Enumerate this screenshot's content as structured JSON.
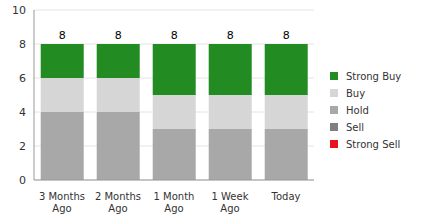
{
  "chart_data": {
    "type": "bar",
    "stacked": true,
    "categories": [
      "3 Months Ago",
      "2 Months Ago",
      "1 Month Ago",
      "1 Week Ago",
      "Today"
    ],
    "series": [
      {
        "name": "Strong Buy",
        "color": "#228b22",
        "values": [
          2,
          2,
          3,
          3,
          3
        ]
      },
      {
        "name": "Buy",
        "color": "#d6d6d6",
        "values": [
          2,
          2,
          2,
          2,
          2
        ]
      },
      {
        "name": "Hold",
        "color": "#a8a8a8",
        "values": [
          4,
          4,
          3,
          3,
          3
        ]
      },
      {
        "name": "Sell",
        "color": "#7f7f7f",
        "values": [
          0,
          0,
          0,
          0,
          0
        ]
      },
      {
        "name": "Strong Sell",
        "color": "#e8141c",
        "values": [
          0,
          0,
          0,
          0,
          0
        ]
      }
    ],
    "totals": [
      8,
      8,
      8,
      8,
      8
    ],
    "ylim": [
      0,
      10
    ],
    "yticks": [
      0,
      2,
      4,
      6,
      8,
      10
    ],
    "grid": true,
    "legend": "right"
  }
}
